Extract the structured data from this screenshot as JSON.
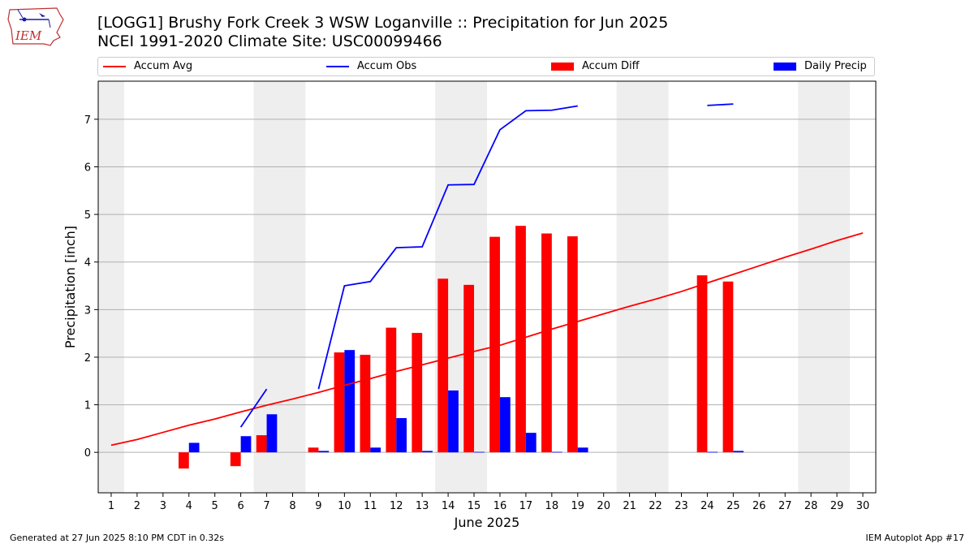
{
  "logo": {
    "text": "IEM"
  },
  "title": {
    "line1": "[LOGG1] Brushy Fork Creek 3 WSW Loganville :: Precipitation for Jun 2025",
    "line2": "NCEI 1991-2020 Climate Site: USC00099466"
  },
  "legend": [
    {
      "label": "Accum Avg",
      "kind": "line",
      "color": "#ff0000"
    },
    {
      "label": "Accum Obs",
      "kind": "line",
      "color": "#0000ff"
    },
    {
      "label": "Accum Diff",
      "kind": "bar",
      "color": "#ff0000"
    },
    {
      "label": "Daily Precip",
      "kind": "bar",
      "color": "#0000ff"
    }
  ],
  "footer": {
    "left": "Generated at 27 Jun 2025 8:10 PM CDT in 0.32s",
    "right": "IEM Autoplot App #17"
  },
  "chart_data": {
    "type": "bar",
    "xlabel": "June 2025",
    "ylabel": "Precipitation [inch]",
    "xlim": [
      0.5,
      30.5
    ],
    "ylim": [
      -0.85,
      7.8
    ],
    "yticks": [
      0,
      1,
      2,
      3,
      4,
      5,
      6,
      7
    ],
    "xticks": [
      1,
      2,
      3,
      4,
      5,
      6,
      7,
      8,
      9,
      10,
      11,
      12,
      13,
      14,
      15,
      16,
      17,
      18,
      19,
      20,
      21,
      22,
      23,
      24,
      25,
      26,
      27,
      28,
      29,
      30
    ],
    "grid": "y",
    "legend_position": "top",
    "weekend_shading": [
      [
        0.5,
        1.5
      ],
      [
        6.5,
        8.5
      ],
      [
        13.5,
        15.5
      ],
      [
        20.5,
        22.5
      ],
      [
        27.5,
        29.5
      ]
    ],
    "colors": {
      "avg": "#ff0000",
      "obs": "#0000ff",
      "diff": "#ff0000",
      "daily": "#0000ff",
      "shade": "#eeeeee"
    },
    "series": [
      {
        "name": "Accum Avg",
        "kind": "line",
        "points": [
          [
            1,
            0.15
          ],
          [
            2,
            0.27
          ],
          [
            3,
            0.42
          ],
          [
            4,
            0.57
          ],
          [
            5,
            0.7
          ],
          [
            6,
            0.85
          ],
          [
            7,
            0.99
          ],
          [
            8,
            1.12
          ],
          [
            9,
            1.26
          ],
          [
            10,
            1.41
          ],
          [
            11,
            1.55
          ],
          [
            12,
            1.7
          ],
          [
            13,
            1.84
          ],
          [
            14,
            1.98
          ],
          [
            15,
            2.12
          ],
          [
            16,
            2.25
          ],
          [
            17,
            2.42
          ],
          [
            18,
            2.59
          ],
          [
            19,
            2.75
          ],
          [
            20,
            2.91
          ],
          [
            21,
            3.07
          ],
          [
            22,
            3.22
          ],
          [
            23,
            3.38
          ],
          [
            24,
            3.56
          ],
          [
            25,
            3.74
          ],
          [
            26,
            3.92
          ],
          [
            27,
            4.1
          ],
          [
            28,
            4.27
          ],
          [
            29,
            4.45
          ],
          [
            30,
            4.61
          ]
        ]
      },
      {
        "name": "Accum Obs",
        "kind": "line",
        "segments": [
          [
            [
              6,
              0.53
            ],
            [
              7,
              1.33
            ]
          ],
          [
            [
              9,
              1.33
            ],
            [
              10,
              3.5
            ],
            [
              11,
              3.59
            ],
            [
              12,
              4.3
            ],
            [
              13,
              4.32
            ],
            [
              14,
              5.62
            ],
            [
              15,
              5.63
            ],
            [
              16,
              6.78
            ],
            [
              17,
              7.18
            ],
            [
              18,
              7.19
            ],
            [
              19,
              7.28
            ]
          ],
          [
            [
              24,
              7.29
            ],
            [
              25,
              7.32
            ]
          ]
        ]
      },
      {
        "name": "Accum Diff",
        "kind": "bar",
        "points": [
          [
            4,
            -0.34
          ],
          [
            6,
            -0.29
          ],
          [
            7,
            0.36
          ],
          [
            9,
            0.1
          ],
          [
            10,
            2.1
          ],
          [
            11,
            2.05
          ],
          [
            12,
            2.62
          ],
          [
            13,
            2.51
          ],
          [
            14,
            3.65
          ],
          [
            15,
            3.52
          ],
          [
            16,
            4.53
          ],
          [
            17,
            4.76
          ],
          [
            18,
            4.6
          ],
          [
            19,
            4.54
          ],
          [
            24,
            3.72
          ],
          [
            25,
            3.59
          ]
        ]
      },
      {
        "name": "Daily Precip",
        "kind": "bar",
        "points": [
          [
            4,
            0.2
          ],
          [
            6,
            0.34
          ],
          [
            7,
            0.8
          ],
          [
            9,
            0.03
          ],
          [
            10,
            2.15
          ],
          [
            11,
            0.1
          ],
          [
            12,
            0.72
          ],
          [
            13,
            0.03
          ],
          [
            14,
            1.3
          ],
          [
            15,
            0.01
          ],
          [
            16,
            1.16
          ],
          [
            17,
            0.41
          ],
          [
            18,
            0.01
          ],
          [
            19,
            0.1
          ],
          [
            24,
            0.01
          ],
          [
            25,
            0.03
          ]
        ]
      }
    ]
  }
}
